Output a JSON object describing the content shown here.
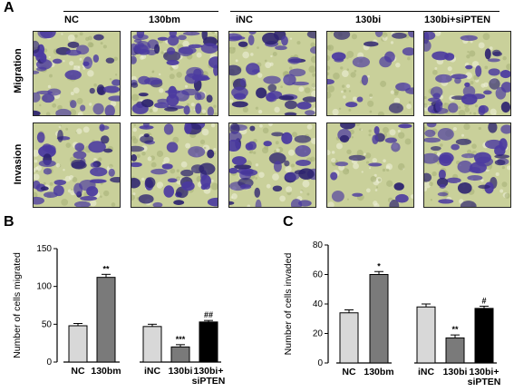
{
  "panels": {
    "A": "A",
    "B": "B",
    "C": "C"
  },
  "panel_a": {
    "columns": [
      "NC",
      "130bm",
      "iNC",
      "130bi",
      "130bi+siPTEN"
    ],
    "rows": [
      "Migration",
      "Invasion"
    ]
  },
  "colors": {
    "light_bar": "#d8d8d8",
    "dark_bar": "#7a7a7a",
    "black_bar": "#000000",
    "stain": "#4b3aa0",
    "background_field": "#c9d09a"
  },
  "chart_data": [
    {
      "type": "bar",
      "title": "",
      "ylabel": "Number of cells migrated",
      "categories": [
        "NC",
        "130bm",
        "iNC",
        "130bi",
        "130bi+ siPTEN"
      ],
      "values": [
        48,
        112,
        47,
        20,
        53
      ],
      "errors": [
        3,
        4,
        3,
        3,
        2
      ],
      "annotations": [
        "",
        "**",
        "",
        "***",
        "##"
      ],
      "bar_colors": [
        "#d8d8d8",
        "#7a7a7a",
        "#d8d8d8",
        "#7a7a7a",
        "#000000"
      ],
      "ylim": [
        0,
        150
      ],
      "yticks": [
        0,
        50,
        100,
        150
      ]
    },
    {
      "type": "bar",
      "title": "",
      "ylabel": "Number of cells invaded",
      "categories": [
        "NC",
        "130bm",
        "iNC",
        "130bi",
        "130bi+ siPTEN"
      ],
      "values": [
        34,
        60,
        38,
        17,
        37
      ],
      "errors": [
        2,
        2,
        2,
        2,
        1.5
      ],
      "annotations": [
        "",
        "*",
        "",
        "**",
        "#"
      ],
      "bar_colors": [
        "#d8d8d8",
        "#7a7a7a",
        "#d8d8d8",
        "#7a7a7a",
        "#000000"
      ],
      "ylim": [
        0,
        80
      ],
      "yticks": [
        0,
        20,
        40,
        60,
        80
      ]
    }
  ]
}
